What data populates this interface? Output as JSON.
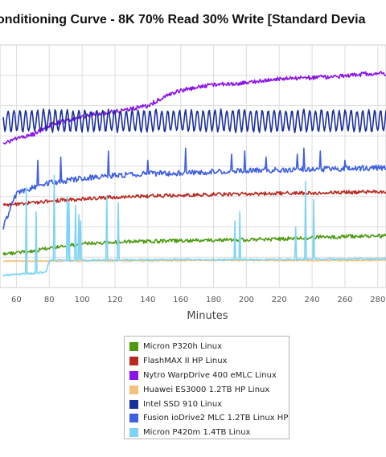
{
  "chart_data": {
    "type": "line",
    "title": "onditioning Curve - 8K 70% Read 30% Write [Standard Devia",
    "xlabel": "Minutes",
    "xlim": [
      50,
      285
    ],
    "x_ticks": [
      "60",
      "80",
      "100",
      "120",
      "140",
      "160",
      "180",
      "200",
      "220",
      "240",
      "260",
      "280"
    ],
    "grid": true,
    "legend_position": "bottom",
    "series": [
      {
        "name": "Micron P320h Linux",
        "color": "#4d9a0f",
        "points": [
          [
            52,
            0.11
          ],
          [
            70,
            0.12
          ],
          [
            80,
            0.13
          ],
          [
            95,
            0.14
          ],
          [
            100,
            0.145
          ],
          [
            120,
            0.15
          ],
          [
            140,
            0.152
          ],
          [
            160,
            0.155
          ],
          [
            180,
            0.157
          ],
          [
            200,
            0.158
          ],
          [
            220,
            0.16
          ],
          [
            240,
            0.165
          ],
          [
            260,
            0.168
          ],
          [
            280,
            0.17
          ],
          [
            285,
            0.17
          ]
        ],
        "noise": 0.006,
        "period": 2.5
      },
      {
        "name": "FlashMAX II HP Linux",
        "color": "#b82a21",
        "points": [
          [
            52,
            0.272
          ],
          [
            60,
            0.275
          ],
          [
            80,
            0.285
          ],
          [
            100,
            0.292
          ],
          [
            120,
            0.298
          ],
          [
            140,
            0.302
          ],
          [
            160,
            0.305
          ],
          [
            180,
            0.307
          ],
          [
            200,
            0.309
          ],
          [
            220,
            0.311
          ],
          [
            240,
            0.312
          ],
          [
            260,
            0.314
          ],
          [
            280,
            0.316
          ],
          [
            285,
            0.317
          ]
        ],
        "noise": 0.006,
        "period": 2.5
      },
      {
        "name": "Nytro WarpDrive 400 eMLC Linux",
        "color": "#8a14e6",
        "points": [
          [
            52,
            0.475
          ],
          [
            60,
            0.49
          ],
          [
            70,
            0.505
          ],
          [
            80,
            0.535
          ],
          [
            100,
            0.565
          ],
          [
            120,
            0.58
          ],
          [
            140,
            0.6
          ],
          [
            150,
            0.63
          ],
          [
            160,
            0.65
          ],
          [
            180,
            0.67
          ],
          [
            200,
            0.675
          ],
          [
            220,
            0.688
          ],
          [
            240,
            0.692
          ],
          [
            260,
            0.698
          ],
          [
            280,
            0.708
          ],
          [
            285,
            0.705
          ]
        ],
        "noise": 0.007,
        "period": 3.2
      },
      {
        "name": "Huawei ES3000 1.2TB HP Linux",
        "color": "#f5c07a",
        "points": [
          [
            52,
            0.087
          ],
          [
            100,
            0.088
          ],
          [
            150,
            0.089
          ],
          [
            200,
            0.09
          ],
          [
            250,
            0.089
          ],
          [
            285,
            0.09
          ]
        ],
        "noise": 0.002,
        "period": 2.1
      },
      {
        "name": "Intel SSD 910 Linux",
        "color": "#1a2e9c",
        "points": [
          [
            52,
            0.55
          ],
          [
            285,
            0.55
          ]
        ],
        "wave": 0.035,
        "period": 3.6,
        "noise": 0.004
      },
      {
        "name": "Fusion ioDrive2 MLC 1.2TB Linux HP",
        "color": "#3f60e0",
        "points": [
          [
            52,
            0.2
          ],
          [
            60,
            0.31
          ],
          [
            70,
            0.33
          ],
          [
            80,
            0.345
          ],
          [
            100,
            0.36
          ],
          [
            120,
            0.37
          ],
          [
            140,
            0.375
          ],
          [
            160,
            0.378
          ],
          [
            180,
            0.382
          ],
          [
            200,
            0.385
          ],
          [
            220,
            0.388
          ],
          [
            240,
            0.39
          ],
          [
            260,
            0.392
          ],
          [
            280,
            0.395
          ],
          [
            285,
            0.395
          ]
        ],
        "noise": 0.009,
        "period": 2.4,
        "spikes": [
          [
            24,
            0.42
          ],
          [
            28,
            0.44
          ],
          [
            46,
            0.43
          ],
          [
            73,
            0.42
          ],
          [
            87,
            0.43
          ],
          [
            116,
            0.45
          ],
          [
            140,
            0.42
          ],
          [
            163,
            0.46
          ],
          [
            191,
            0.44
          ],
          [
            199,
            0.45
          ],
          [
            212,
            0.43
          ],
          [
            231,
            0.44
          ],
          [
            235,
            0.46
          ],
          [
            245,
            0.45
          ],
          [
            260,
            0.42
          ]
        ]
      },
      {
        "name": "Micron P420m 1.4TB Linux",
        "color": "#7fd4f5",
        "points": [
          [
            52,
            0.04
          ],
          [
            78,
            0.05
          ],
          [
            80,
            0.09
          ],
          [
            100,
            0.09
          ],
          [
            150,
            0.092
          ],
          [
            200,
            0.092
          ],
          [
            250,
            0.094
          ],
          [
            285,
            0.095
          ]
        ],
        "noise": 0.003,
        "period": 2.2,
        "spikes": [
          [
            44,
            0.38
          ],
          [
            48,
            0.36
          ],
          [
            66,
            0.33
          ],
          [
            72,
            0.25
          ],
          [
            83,
            0.37
          ],
          [
            91,
            0.3
          ],
          [
            92,
            0.28
          ],
          [
            96,
            0.27
          ],
          [
            98,
            0.24
          ],
          [
            99,
            0.22
          ],
          [
            115,
            0.3
          ],
          [
            122,
            0.28
          ],
          [
            193,
            0.22
          ],
          [
            196,
            0.25
          ],
          [
            230,
            0.2
          ],
          [
            236,
            0.35
          ],
          [
            241,
            0.29
          ]
        ]
      }
    ],
    "ylim": [
      0,
      0.8
    ]
  }
}
